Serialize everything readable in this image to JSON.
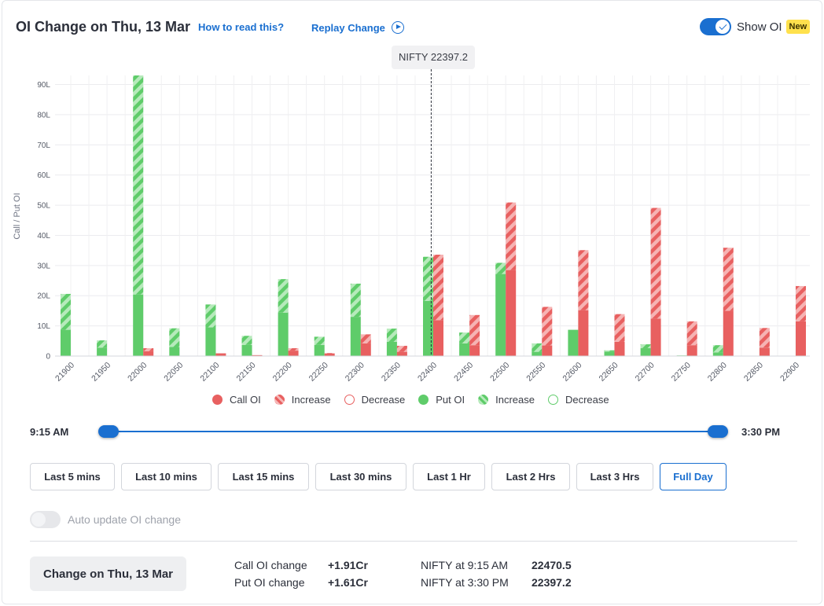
{
  "header": {
    "title": "OI Change on Thu, 13 Mar",
    "how_to_read": "How to read this?",
    "replay": "Replay Change",
    "show_oi_label": "Show OI",
    "new_badge": "New",
    "show_oi_enabled": true
  },
  "tooltip": {
    "spot_label": "NIFTY 22397.2"
  },
  "chart_data": {
    "type": "bar",
    "ylabel": "Call / Put OI",
    "yticks": [
      "0",
      "10L",
      "20L",
      "30L",
      "40L",
      "50L",
      "60L",
      "70L",
      "80L",
      "90L"
    ],
    "ylim": [
      0,
      93
    ],
    "spot_marker": 22397.2,
    "categories": [
      "21900",
      "21950",
      "22000",
      "22050",
      "22100",
      "22150",
      "22200",
      "22250",
      "22300",
      "22350",
      "22400",
      "22450",
      "22500",
      "22550",
      "22600",
      "22650",
      "22700",
      "22750",
      "22800",
      "22850",
      "22900"
    ],
    "series": [
      {
        "name": "Put OI",
        "color": "#5fcc6a",
        "values": [
          8.7,
          2.8,
          20.4,
          3.0,
          9.5,
          3.7,
          14.4,
          3.7,
          13.0,
          4.7,
          18.3,
          4.2,
          27.2,
          1.4,
          8.7,
          1.5,
          2.6,
          0.2,
          1.2,
          0.0,
          0.1
        ]
      },
      {
        "name": "Increase",
        "color": "#5fcc6a",
        "pattern": "hatched",
        "values": [
          11.9,
          2.4,
          72.6,
          6.2,
          7.6,
          3.0,
          11.1,
          2.7,
          11.0,
          4.4,
          14.6,
          3.6,
          3.7,
          2.8,
          0.0,
          0.4,
          1.3,
          0.0,
          2.4,
          0.0,
          0.0
        ]
      },
      {
        "name": "Call OI",
        "color": "#e86060",
        "values": [
          0,
          0,
          1.6,
          0.1,
          0.9,
          0.3,
          1.8,
          0.8,
          4.2,
          1.4,
          11.9,
          3.6,
          28.5,
          3.5,
          15.2,
          4.7,
          12.4,
          3.6,
          15.0,
          2.8,
          11.5
        ]
      },
      {
        "name": "Increase",
        "color": "#e86060",
        "pattern": "hatched",
        "values": [
          0,
          0,
          1.0,
          0.0,
          0.0,
          0.0,
          0.8,
          0.2,
          3.0,
          2.0,
          21.7,
          10.0,
          22.4,
          12.8,
          19.9,
          9.2,
          36.7,
          7.9,
          20.9,
          6.5,
          11.7
        ]
      }
    ]
  },
  "legend": [
    {
      "label": "Call OI",
      "kind": "call-solid"
    },
    {
      "label": "Increase",
      "kind": "call-inc"
    },
    {
      "label": "Decrease",
      "kind": "call-dec"
    },
    {
      "label": "Put OI",
      "kind": "put-solid"
    },
    {
      "label": "Increase",
      "kind": "put-inc"
    },
    {
      "label": "Decrease",
      "kind": "put-dec"
    }
  ],
  "slider": {
    "start": "9:15 AM",
    "end": "3:30 PM"
  },
  "ranges": [
    "Last 5 mins",
    "Last 10 mins",
    "Last 15 mins",
    "Last 30 mins",
    "Last 1 Hr",
    "Last 2 Hrs",
    "Last 3 Hrs",
    "Full Day"
  ],
  "active_range": "Full Day",
  "auto_update": {
    "label": "Auto update OI change",
    "enabled": false
  },
  "summary": {
    "change_button": "Change on Thu, 13 Mar",
    "call_oi_label": "Call OI change",
    "call_oi_value": "+1.91Cr",
    "put_oi_label": "Put OI change",
    "put_oi_value": "+1.61Cr",
    "nifty_open_label": "NIFTY at 9:15 AM",
    "nifty_open_value": "22470.5",
    "nifty_close_label": "NIFTY at 3:30 PM",
    "nifty_close_value": "22397.2"
  }
}
